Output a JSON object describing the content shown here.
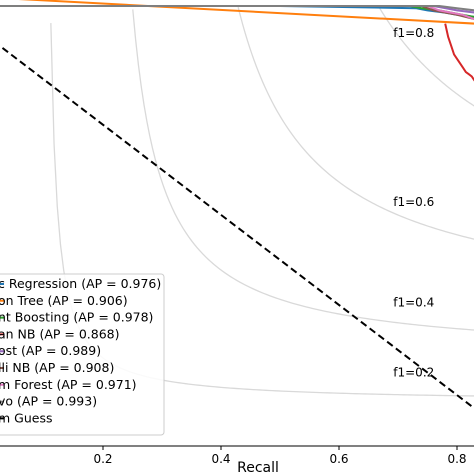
{
  "chart_data": {
    "type": "line",
    "xlabel": "Recall",
    "ylabel": "",
    "xlim": [
      0.0,
      0.83
    ],
    "ylim": [
      0.0,
      1.0
    ],
    "x_ticks": [
      0.2,
      0.4,
      0.6,
      0.8
    ],
    "x_tick_labels": [
      "0.2",
      "0.4",
      "0.6",
      "0.8"
    ],
    "grid": false,
    "iso_f1": [
      {
        "f1": 0.8,
        "label": "f1=0.8"
      },
      {
        "f1": 0.6,
        "label": "f1=0.6"
      },
      {
        "f1": 0.4,
        "label": "f1=0.4"
      },
      {
        "f1": 0.2,
        "label": "f1=0.2"
      }
    ],
    "series": [
      {
        "name": "c Regression (AP = 0.976)",
        "color": "#1f77b4",
        "x": [
          0.0,
          0.5,
          0.73,
          0.75,
          0.78,
          0.8,
          0.83
        ],
        "y": [
          1.0,
          1.0,
          0.995,
          0.99,
          0.985,
          0.98,
          0.975
        ]
      },
      {
        "name": "on Tree (AP = 0.906)",
        "color": "#ff7f0e",
        "x": [
          0.0,
          0.83
        ],
        "y": [
          1.02,
          0.96
        ]
      },
      {
        "name": "nt Boosting (AP = 0.978)",
        "color": "#2ca02c",
        "x": [
          0.0,
          0.72,
          0.74,
          0.77,
          0.79,
          0.81,
          0.83
        ],
        "y": [
          1.0,
          1.0,
          0.995,
          0.99,
          0.985,
          0.98,
          0.975
        ]
      },
      {
        "name": "an NB (AP = 0.868)",
        "color": "#d62728",
        "x": [
          0.78,
          0.785,
          0.79,
          0.795,
          0.8,
          0.805,
          0.81,
          0.815,
          0.82,
          0.825,
          0.83
        ],
        "y": [
          0.96,
          0.93,
          0.91,
          0.89,
          0.88,
          0.87,
          0.86,
          0.85,
          0.845,
          0.84,
          0.83
        ]
      },
      {
        "name": "ost (AP = 0.989)",
        "color": "#9467bd",
        "x": [
          0.0,
          0.76,
          0.78,
          0.8,
          0.83
        ],
        "y": [
          1.0,
          1.0,
          0.995,
          0.99,
          0.985
        ]
      },
      {
        "name": "lli NB (AP = 0.908)",
        "color": "#8c564b",
        "x": [
          0.0,
          0.74,
          0.76,
          0.8,
          0.83
        ],
        "y": [
          1.0,
          1.0,
          0.99,
          0.98,
          0.97
        ]
      },
      {
        "name": "m Forest (AP = 0.971)",
        "color": "#e377c2",
        "x": [
          0.0,
          0.75,
          0.77,
          0.79,
          0.81,
          0.83
        ],
        "y": [
          1.0,
          1.0,
          0.99,
          0.985,
          0.98,
          0.97
        ]
      },
      {
        "name": "vo (AP = 0.993)",
        "color": "#7f7f7f",
        "x": [
          0.0,
          0.77,
          0.8,
          0.83
        ],
        "y": [
          1.0,
          1.0,
          0.995,
          0.99
        ]
      },
      {
        "name": "m Guess",
        "color": "#000000",
        "dashed": true,
        "x": [
          0.0,
          0.83
        ],
        "y": [
          0.935,
          0.085
        ]
      }
    ]
  }
}
